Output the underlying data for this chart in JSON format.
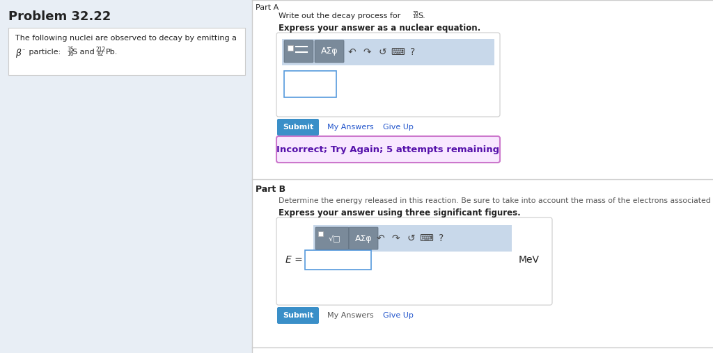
{
  "bg_left": "#e8eef5",
  "bg_right": "#ffffff",
  "bg_top_strip": "#dde5ef",
  "problem_title": "Problem 32.22",
  "line1": "The following nuclei are observed to decay by emitting a",
  "part_a_instr": "Write out the decay process for ",
  "part_a_bold": "Express your answer as a nuclear equation.",
  "part_b_label": "Part B",
  "part_b_instr": "Determine the energy released in this reaction. Be sure to take into account the mass of the electrons associated wi",
  "part_b_bold": "Express your answer using three significant figures.",
  "incorrect_text": "Incorrect; Try Again; 5 attempts remaining",
  "submit_bg": "#3a8fc8",
  "submit_text": "#ffffff",
  "incorrect_bg": "#f8e8ff",
  "incorrect_border": "#cc77cc",
  "incorrect_text_color": "#5511aa",
  "toolbar_bg": "#c8d8ea",
  "btn_bg": "#7a8a9a",
  "btn_border": "#5a6a7a",
  "link_blue": "#2255cc",
  "gray_link": "#777777",
  "divider": "#cccccc",
  "input_border": "#5599dd",
  "white": "#ffffff",
  "text_dark": "#222222",
  "text_gray": "#555555",
  "panel_border": "#cccccc",
  "light_gray_bg": "#f0f4f8"
}
